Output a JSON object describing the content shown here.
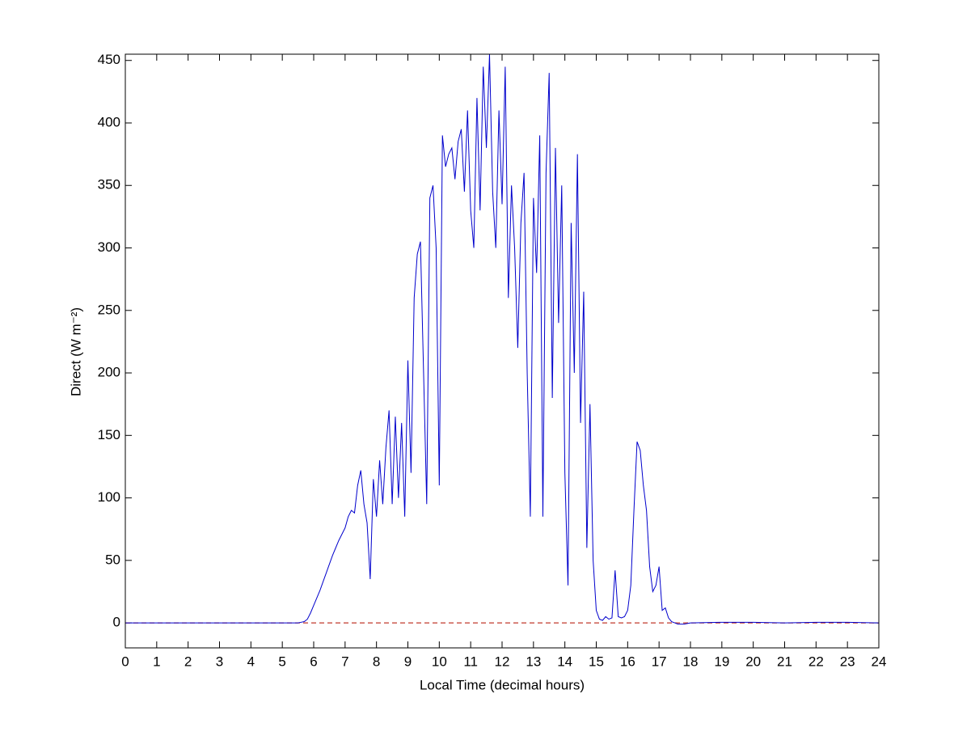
{
  "chart_data": {
    "type": "line",
    "x_label": "Local Time (decimal hours)",
    "y_label": "Direct (W m⁻²)",
    "xlim": [
      0,
      24
    ],
    "xticks": [
      0,
      1,
      2,
      3,
      4,
      5,
      6,
      7,
      8,
      9,
      10,
      11,
      12,
      13,
      14,
      15,
      16,
      17,
      18,
      19,
      20,
      21,
      22,
      23,
      24
    ],
    "ylim": [
      -20,
      455
    ],
    "yticks": [
      0,
      50,
      100,
      150,
      200,
      250,
      300,
      350,
      400,
      450
    ],
    "grid": false,
    "reference_line": {
      "y": 0,
      "color": "#c0392b",
      "dashed": true
    },
    "series": [
      {
        "color": "#0000cc",
        "x": [
          0,
          1,
          2,
          3,
          4,
          5,
          5.5,
          5.6,
          5.7,
          5.8,
          5.9,
          6.0,
          6.1,
          6.2,
          6.3,
          6.4,
          6.5,
          6.6,
          6.7,
          6.8,
          6.9,
          7.0,
          7.1,
          7.2,
          7.3,
          7.4,
          7.5,
          7.6,
          7.7,
          7.8,
          7.9,
          8.0,
          8.1,
          8.2,
          8.3,
          8.4,
          8.5,
          8.6,
          8.7,
          8.8,
          8.9,
          9.0,
          9.1,
          9.2,
          9.3,
          9.4,
          9.5,
          9.6,
          9.7,
          9.8,
          9.9,
          10.0,
          10.1,
          10.2,
          10.3,
          10.4,
          10.5,
          10.6,
          10.7,
          10.8,
          10.9,
          11.0,
          11.1,
          11.2,
          11.3,
          11.4,
          11.5,
          11.6,
          11.7,
          11.8,
          11.9,
          12.0,
          12.1,
          12.2,
          12.3,
          12.4,
          12.5,
          12.6,
          12.7,
          12.8,
          12.9,
          13.0,
          13.1,
          13.2,
          13.3,
          13.4,
          13.5,
          13.6,
          13.7,
          13.8,
          13.9,
          14.0,
          14.1,
          14.2,
          14.3,
          14.4,
          14.5,
          14.6,
          14.7,
          14.8,
          14.9,
          15.0,
          15.1,
          15.2,
          15.3,
          15.4,
          15.5,
          15.6,
          15.7,
          15.8,
          15.9,
          16.0,
          16.1,
          16.2,
          16.3,
          16.4,
          16.5,
          16.6,
          16.7,
          16.8,
          16.9,
          17.0,
          17.1,
          17.2,
          17.3,
          17.4,
          17.5,
          17.6,
          17.8,
          18,
          19,
          20,
          21,
          22,
          23,
          24
        ],
        "values": [
          0,
          0,
          0,
          0,
          0,
          0,
          0,
          0.5,
          1,
          3,
          8,
          14,
          20,
          26,
          33,
          40,
          47,
          54,
          60,
          66,
          71,
          76,
          85,
          90,
          88,
          110,
          122,
          95,
          80,
          35,
          115,
          85,
          130,
          95,
          140,
          170,
          95,
          165,
          100,
          160,
          85,
          210,
          120,
          260,
          295,
          305,
          200,
          95,
          340,
          350,
          300,
          110,
          390,
          365,
          375,
          380,
          355,
          385,
          395,
          345,
          410,
          330,
          300,
          420,
          330,
          445,
          380,
          455,
          345,
          300,
          410,
          335,
          445,
          260,
          350,
          300,
          220,
          320,
          360,
          200,
          85,
          340,
          280,
          390,
          85,
          360,
          440,
          180,
          380,
          240,
          350,
          120,
          30,
          320,
          200,
          375,
          160,
          265,
          60,
          175,
          50,
          10,
          3,
          2,
          5,
          3,
          4,
          42,
          5,
          4,
          5,
          10,
          30,
          90,
          145,
          138,
          110,
          90,
          45,
          25,
          30,
          45,
          10,
          12,
          4,
          1,
          0,
          -1,
          -1,
          0,
          0.5,
          0.5,
          0,
          0.5,
          0.5,
          0
        ]
      }
    ]
  }
}
